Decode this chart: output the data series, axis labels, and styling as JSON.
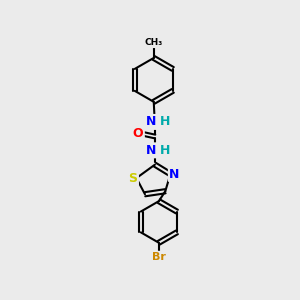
{
  "background_color": "#EBEBEB",
  "bond_color": "#000000",
  "bond_width": 1.5,
  "atom_colors": {
    "N": "#0000FF",
    "O": "#FF0000",
    "S": "#CCCC00",
    "Br": "#CC8800",
    "H": "#00AAAA",
    "C": "#000000"
  },
  "font_size": 8
}
